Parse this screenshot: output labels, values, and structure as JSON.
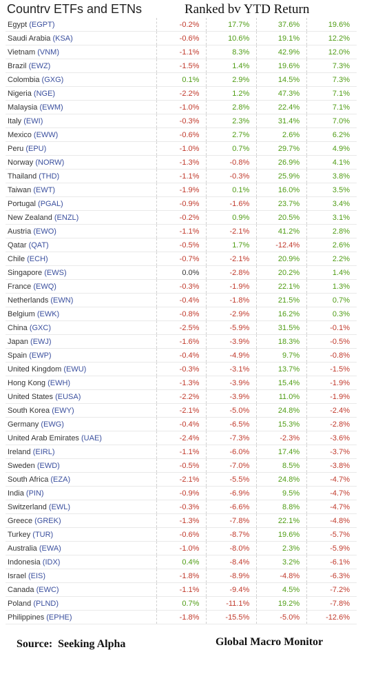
{
  "title_left": "Countrv ETFs and ETNs",
  "title_right": "Ranked bv YTD Return",
  "footer_left": "Source:  Seeking Alpha",
  "footer_right": "Global Macro Monitor",
  "colors": {
    "negative": "#c0392b",
    "positive": "#4f9c14",
    "ticker": "#3a4f9e"
  },
  "rows": [
    {
      "name": "Egypt",
      "ticker": "(EGPT)",
      "v": [
        "-0.2%",
        "17.7%",
        "37.6%",
        "19.6%"
      ]
    },
    {
      "name": "Saudi Arabia",
      "ticker": "(KSA)",
      "v": [
        "-0.6%",
        "10.6%",
        "19.1%",
        "12.2%"
      ]
    },
    {
      "name": "Vietnam",
      "ticker": "(VNM)",
      "v": [
        "-1.1%",
        "8.3%",
        "42.9%",
        "12.0%"
      ]
    },
    {
      "name": "Brazil",
      "ticker": "(EWZ)",
      "v": [
        "-1.5%",
        "1.4%",
        "19.6%",
        "7.3%"
      ]
    },
    {
      "name": "Colombia",
      "ticker": "(GXG)",
      "v": [
        "0.1%",
        "2.9%",
        "14.5%",
        "7.3%"
      ]
    },
    {
      "name": "Nigeria",
      "ticker": "(NGE)",
      "v": [
        "-2.2%",
        "1.2%",
        "47.3%",
        "7.1%"
      ]
    },
    {
      "name": "Malaysia",
      "ticker": "(EWM)",
      "v": [
        "-1.0%",
        "2.8%",
        "22.4%",
        "7.1%"
      ]
    },
    {
      "name": "Italy",
      "ticker": "(EWI)",
      "v": [
        "-0.3%",
        "2.3%",
        "31.4%",
        "7.0%"
      ]
    },
    {
      "name": "Mexico",
      "ticker": "(EWW)",
      "v": [
        "-0.6%",
        "2.7%",
        "2.6%",
        "6.2%"
      ]
    },
    {
      "name": "Peru",
      "ticker": "(EPU)",
      "v": [
        "-1.0%",
        "0.7%",
        "29.7%",
        "4.9%"
      ]
    },
    {
      "name": "Norway",
      "ticker": "(NORW)",
      "v": [
        "-1.3%",
        "-0.8%",
        "26.9%",
        "4.1%"
      ]
    },
    {
      "name": "Thailand",
      "ticker": "(THD)",
      "v": [
        "-1.1%",
        "-0.3%",
        "25.9%",
        "3.8%"
      ]
    },
    {
      "name": "Taiwan",
      "ticker": "(EWT)",
      "v": [
        "-1.9%",
        "0.1%",
        "16.0%",
        "3.5%"
      ]
    },
    {
      "name": "Portugal",
      "ticker": "(PGAL)",
      "v": [
        "-0.9%",
        "-1.6%",
        "23.7%",
        "3.4%"
      ]
    },
    {
      "name": "New Zealand",
      "ticker": "(ENZL)",
      "v": [
        "-0.2%",
        "0.9%",
        "20.5%",
        "3.1%"
      ]
    },
    {
      "name": "Austria",
      "ticker": "(EWO)",
      "v": [
        "-1.1%",
        "-2.1%",
        "41.2%",
        "2.8%"
      ]
    },
    {
      "name": "Qatar",
      "ticker": "(QAT)",
      "v": [
        "-0.5%",
        "1.7%",
        "-12.4%",
        "2.6%"
      ]
    },
    {
      "name": "Chile",
      "ticker": "(ECH)",
      "v": [
        "-0.7%",
        "-2.1%",
        "20.9%",
        "2.2%"
      ]
    },
    {
      "name": "Singapore",
      "ticker": "(EWS)",
      "v": [
        "0.0%",
        "-2.8%",
        "20.2%",
        "1.4%"
      ]
    },
    {
      "name": "France",
      "ticker": "(EWQ)",
      "v": [
        "-0.3%",
        "-1.9%",
        "22.1%",
        "1.3%"
      ]
    },
    {
      "name": "Netherlands",
      "ticker": "(EWN)",
      "v": [
        "-0.4%",
        "-1.8%",
        "21.5%",
        "0.7%"
      ]
    },
    {
      "name": "Belgium",
      "ticker": "(EWK)",
      "v": [
        "-0.8%",
        "-2.9%",
        "16.2%",
        "0.3%"
      ]
    },
    {
      "name": "China",
      "ticker": "(GXC)",
      "v": [
        "-2.5%",
        "-5.9%",
        "31.5%",
        "-0.1%"
      ]
    },
    {
      "name": "Japan",
      "ticker": "(EWJ)",
      "v": [
        "-1.6%",
        "-3.9%",
        "18.3%",
        "-0.5%"
      ]
    },
    {
      "name": "Spain",
      "ticker": "(EWP)",
      "v": [
        "-0.4%",
        "-4.9%",
        "9.7%",
        "-0.8%"
      ]
    },
    {
      "name": "United Kingdom",
      "ticker": "(EWU)",
      "v": [
        "-0.3%",
        "-3.1%",
        "13.7%",
        "-1.5%"
      ]
    },
    {
      "name": "Hong Kong",
      "ticker": "(EWH)",
      "v": [
        "-1.3%",
        "-3.9%",
        "15.4%",
        "-1.9%"
      ]
    },
    {
      "name": "United States",
      "ticker": "(EUSA)",
      "v": [
        "-2.2%",
        "-3.9%",
        "11.0%",
        "-1.9%"
      ]
    },
    {
      "name": "South Korea",
      "ticker": "(EWY)",
      "v": [
        "-2.1%",
        "-5.0%",
        "24.8%",
        "-2.4%"
      ]
    },
    {
      "name": "Germany",
      "ticker": "(EWG)",
      "v": [
        "-0.4%",
        "-6.5%",
        "15.3%",
        "-2.8%"
      ]
    },
    {
      "name": "United Arab Emirates",
      "ticker": "(UAE)",
      "v": [
        "-2.4%",
        "-7.3%",
        "-2.3%",
        "-3.6%"
      ]
    },
    {
      "name": "Ireland",
      "ticker": "(EIRL)",
      "v": [
        "-1.1%",
        "-6.0%",
        "17.4%",
        "-3.7%"
      ]
    },
    {
      "name": "Sweden",
      "ticker": "(EWD)",
      "v": [
        "-0.5%",
        "-7.0%",
        "8.5%",
        "-3.8%"
      ]
    },
    {
      "name": "South Africa",
      "ticker": "(EZA)",
      "v": [
        "-2.1%",
        "-5.5%",
        "24.8%",
        "-4.7%"
      ]
    },
    {
      "name": "India",
      "ticker": "(PIN)",
      "v": [
        "-0.9%",
        "-6.9%",
        "9.5%",
        "-4.7%"
      ]
    },
    {
      "name": "Switzerland",
      "ticker": "(EWL)",
      "v": [
        "-0.3%",
        "-6.6%",
        "8.8%",
        "-4.7%"
      ]
    },
    {
      "name": "Greece",
      "ticker": "(GREK)",
      "v": [
        "-1.3%",
        "-7.8%",
        "22.1%",
        "-4.8%"
      ]
    },
    {
      "name": "Turkey",
      "ticker": "(TUR)",
      "v": [
        "-0.6%",
        "-8.7%",
        "19.6%",
        "-5.7%"
      ]
    },
    {
      "name": "Australia",
      "ticker": "(EWA)",
      "v": [
        "-1.0%",
        "-8.0%",
        "2.3%",
        "-5.9%"
      ]
    },
    {
      "name": "Indonesia",
      "ticker": "(IDX)",
      "v": [
        "0.4%",
        "-8.4%",
        "3.2%",
        "-6.1%"
      ]
    },
    {
      "name": "Israel",
      "ticker": "(EIS)",
      "v": [
        "-1.8%",
        "-8.9%",
        "-4.8%",
        "-6.3%"
      ]
    },
    {
      "name": "Canada",
      "ticker": "(EWC)",
      "v": [
        "-1.1%",
        "-9.4%",
        "4.5%",
        "-7.2%"
      ]
    },
    {
      "name": "Poland",
      "ticker": "(PLND)",
      "v": [
        "0.7%",
        "-11.1%",
        "19.2%",
        "-7.8%"
      ]
    },
    {
      "name": "Philippines",
      "ticker": "(EPHE)",
      "v": [
        "-1.8%",
        "-15.5%",
        "-5.0%",
        "-12.6%"
      ]
    }
  ]
}
